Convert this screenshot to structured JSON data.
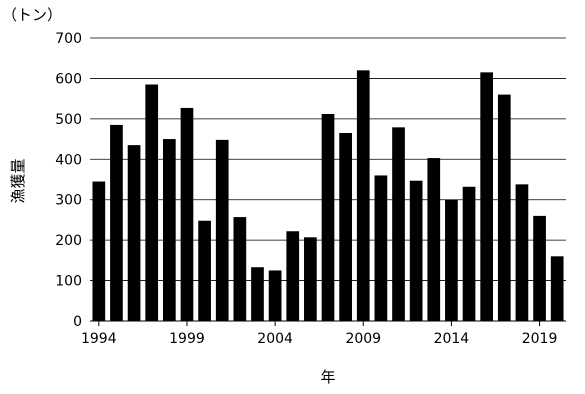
{
  "chart_data": {
    "type": "bar",
    "unit_label": "（トン）",
    "ylabel": "漁獲量",
    "xlabel": "年",
    "ylim": [
      0,
      700
    ],
    "yticks": [
      0,
      100,
      200,
      300,
      400,
      500,
      600,
      700
    ],
    "grid": true,
    "categories": [
      "1994",
      "1995",
      "1996",
      "1997",
      "1998",
      "1999",
      "2000",
      "2001",
      "2002",
      "2003",
      "2004",
      "2005",
      "2006",
      "2007",
      "2008",
      "2009",
      "2010",
      "2011",
      "2012",
      "2013",
      "2014",
      "2015",
      "2016",
      "2017",
      "2018",
      "2019",
      "2020"
    ],
    "xtick_labels": [
      "1994",
      "1999",
      "2004",
      "2009",
      "2014",
      "2019"
    ],
    "values": [
      345,
      485,
      435,
      585,
      450,
      527,
      248,
      448,
      257,
      133,
      125,
      222,
      207,
      512,
      465,
      620,
      360,
      479,
      347,
      403,
      300,
      332,
      615,
      560,
      338,
      260,
      160
    ],
    "bar_color": "#000000"
  }
}
